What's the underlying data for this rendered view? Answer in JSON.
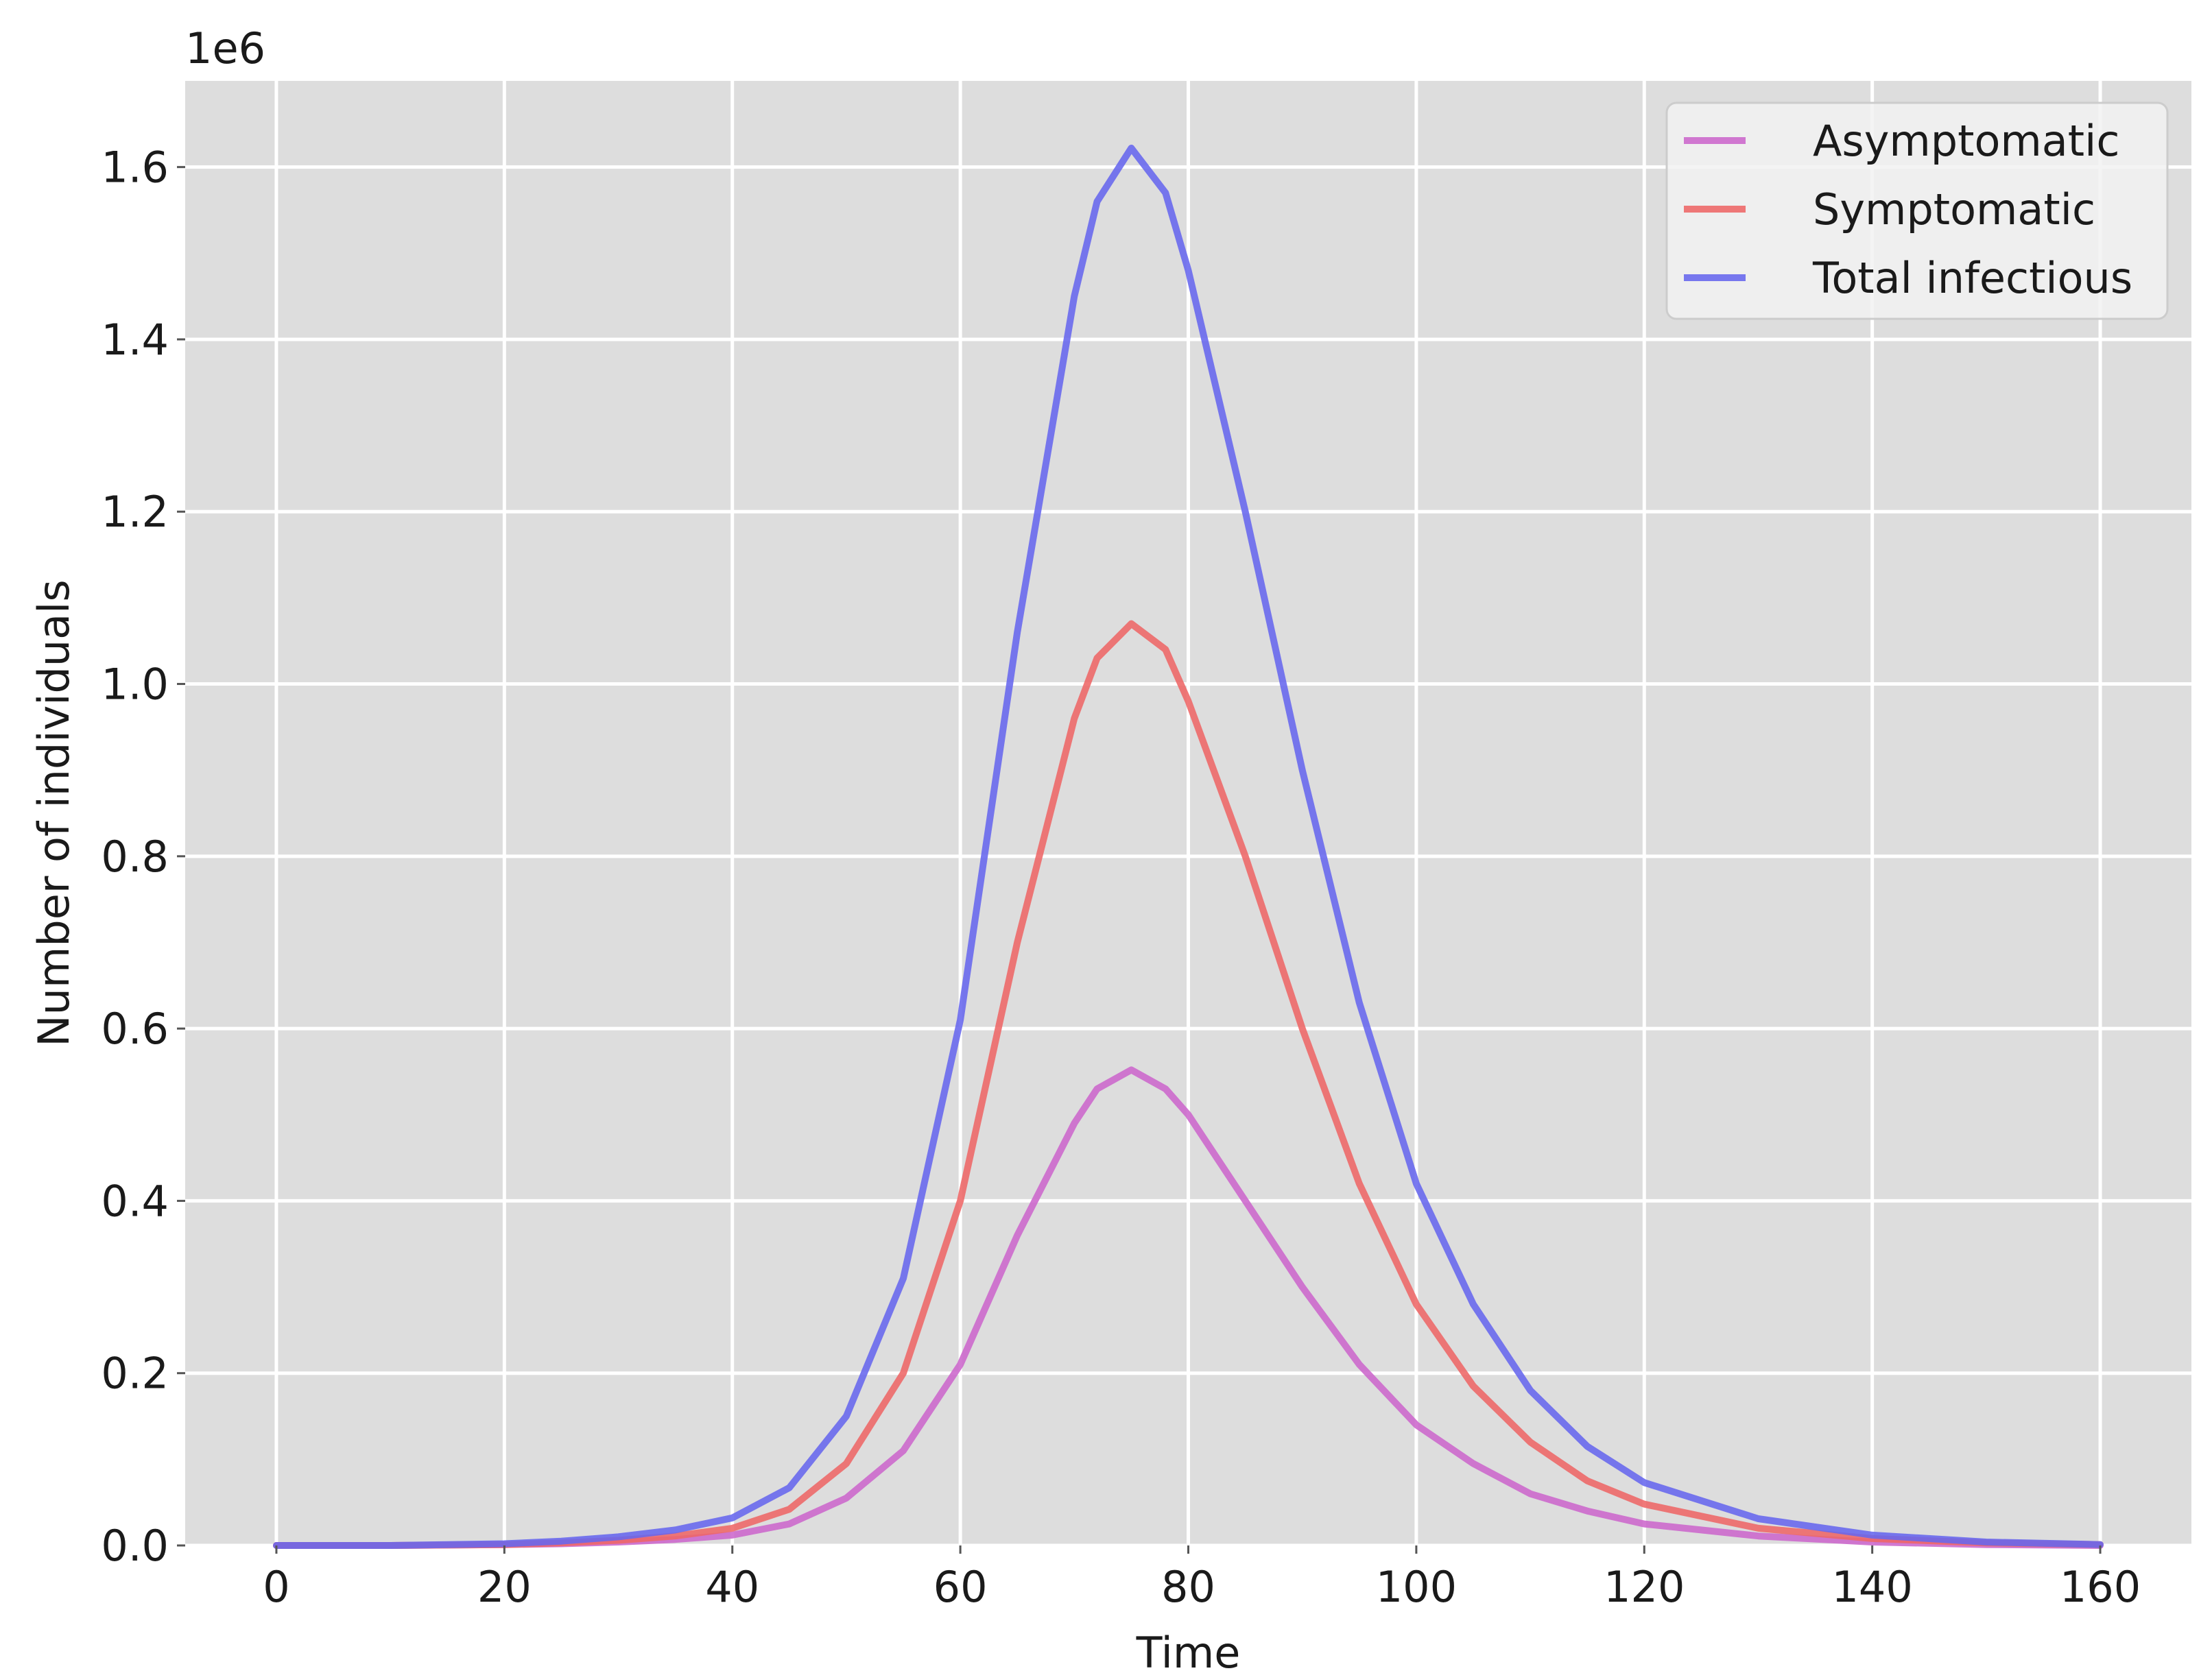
{
  "chart_data": {
    "type": "line",
    "title": "",
    "xlabel": "Time",
    "ylabel": "Number of individuals",
    "y_offset_label": "1e6",
    "xlim": [
      -8,
      168
    ],
    "ylim": [
      0,
      1.7
    ],
    "x_ticks": [
      0,
      20,
      40,
      60,
      80,
      100,
      120,
      140,
      160
    ],
    "x_tick_labels": [
      "0",
      "20",
      "40",
      "60",
      "80",
      "100",
      "120",
      "140",
      "160"
    ],
    "y_ticks": [
      0.0,
      0.2,
      0.4,
      0.6,
      0.8,
      1.0,
      1.2,
      1.4,
      1.6
    ],
    "y_tick_labels": [
      "0.0",
      "0.2",
      "0.4",
      "0.6",
      "0.8",
      "1.0",
      "1.2",
      "1.4",
      "1.6"
    ],
    "grid": true,
    "background_color": "#dddddd",
    "grid_color": "#ffffff",
    "legend_position": "top-right",
    "x": [
      0,
      10,
      20,
      25,
      30,
      35,
      40,
      45,
      50,
      55,
      60,
      65,
      70,
      72,
      75,
      78,
      80,
      85,
      90,
      95,
      100,
      105,
      110,
      115,
      120,
      130,
      140,
      150,
      160
    ],
    "series": [
      {
        "name": "Asymptomatic",
        "color": "#cc66cc",
        "values": [
          0,
          0,
          0.001,
          0.002,
          0.004,
          0.007,
          0.012,
          0.025,
          0.055,
          0.11,
          0.21,
          0.36,
          0.49,
          0.53,
          0.552,
          0.53,
          0.5,
          0.4,
          0.3,
          0.21,
          0.14,
          0.095,
          0.06,
          0.04,
          0.025,
          0.011,
          0.004,
          0.001,
          0
        ]
      },
      {
        "name": "Symptomatic",
        "color": "#ee6666",
        "values": [
          0,
          0,
          0.001,
          0.003,
          0.006,
          0.011,
          0.02,
          0.042,
          0.095,
          0.2,
          0.4,
          0.7,
          0.96,
          1.03,
          1.07,
          1.04,
          0.98,
          0.8,
          0.6,
          0.42,
          0.28,
          0.185,
          0.12,
          0.075,
          0.048,
          0.02,
          0.008,
          0.003,
          0.001
        ]
      },
      {
        "name": "Total infectious",
        "color": "#6666ee",
        "values": [
          0,
          0,
          0.002,
          0.005,
          0.01,
          0.018,
          0.032,
          0.067,
          0.15,
          0.31,
          0.61,
          1.06,
          1.45,
          1.56,
          1.622,
          1.57,
          1.48,
          1.2,
          0.9,
          0.63,
          0.42,
          0.28,
          0.18,
          0.115,
          0.073,
          0.031,
          0.012,
          0.004,
          0.001
        ]
      }
    ]
  }
}
